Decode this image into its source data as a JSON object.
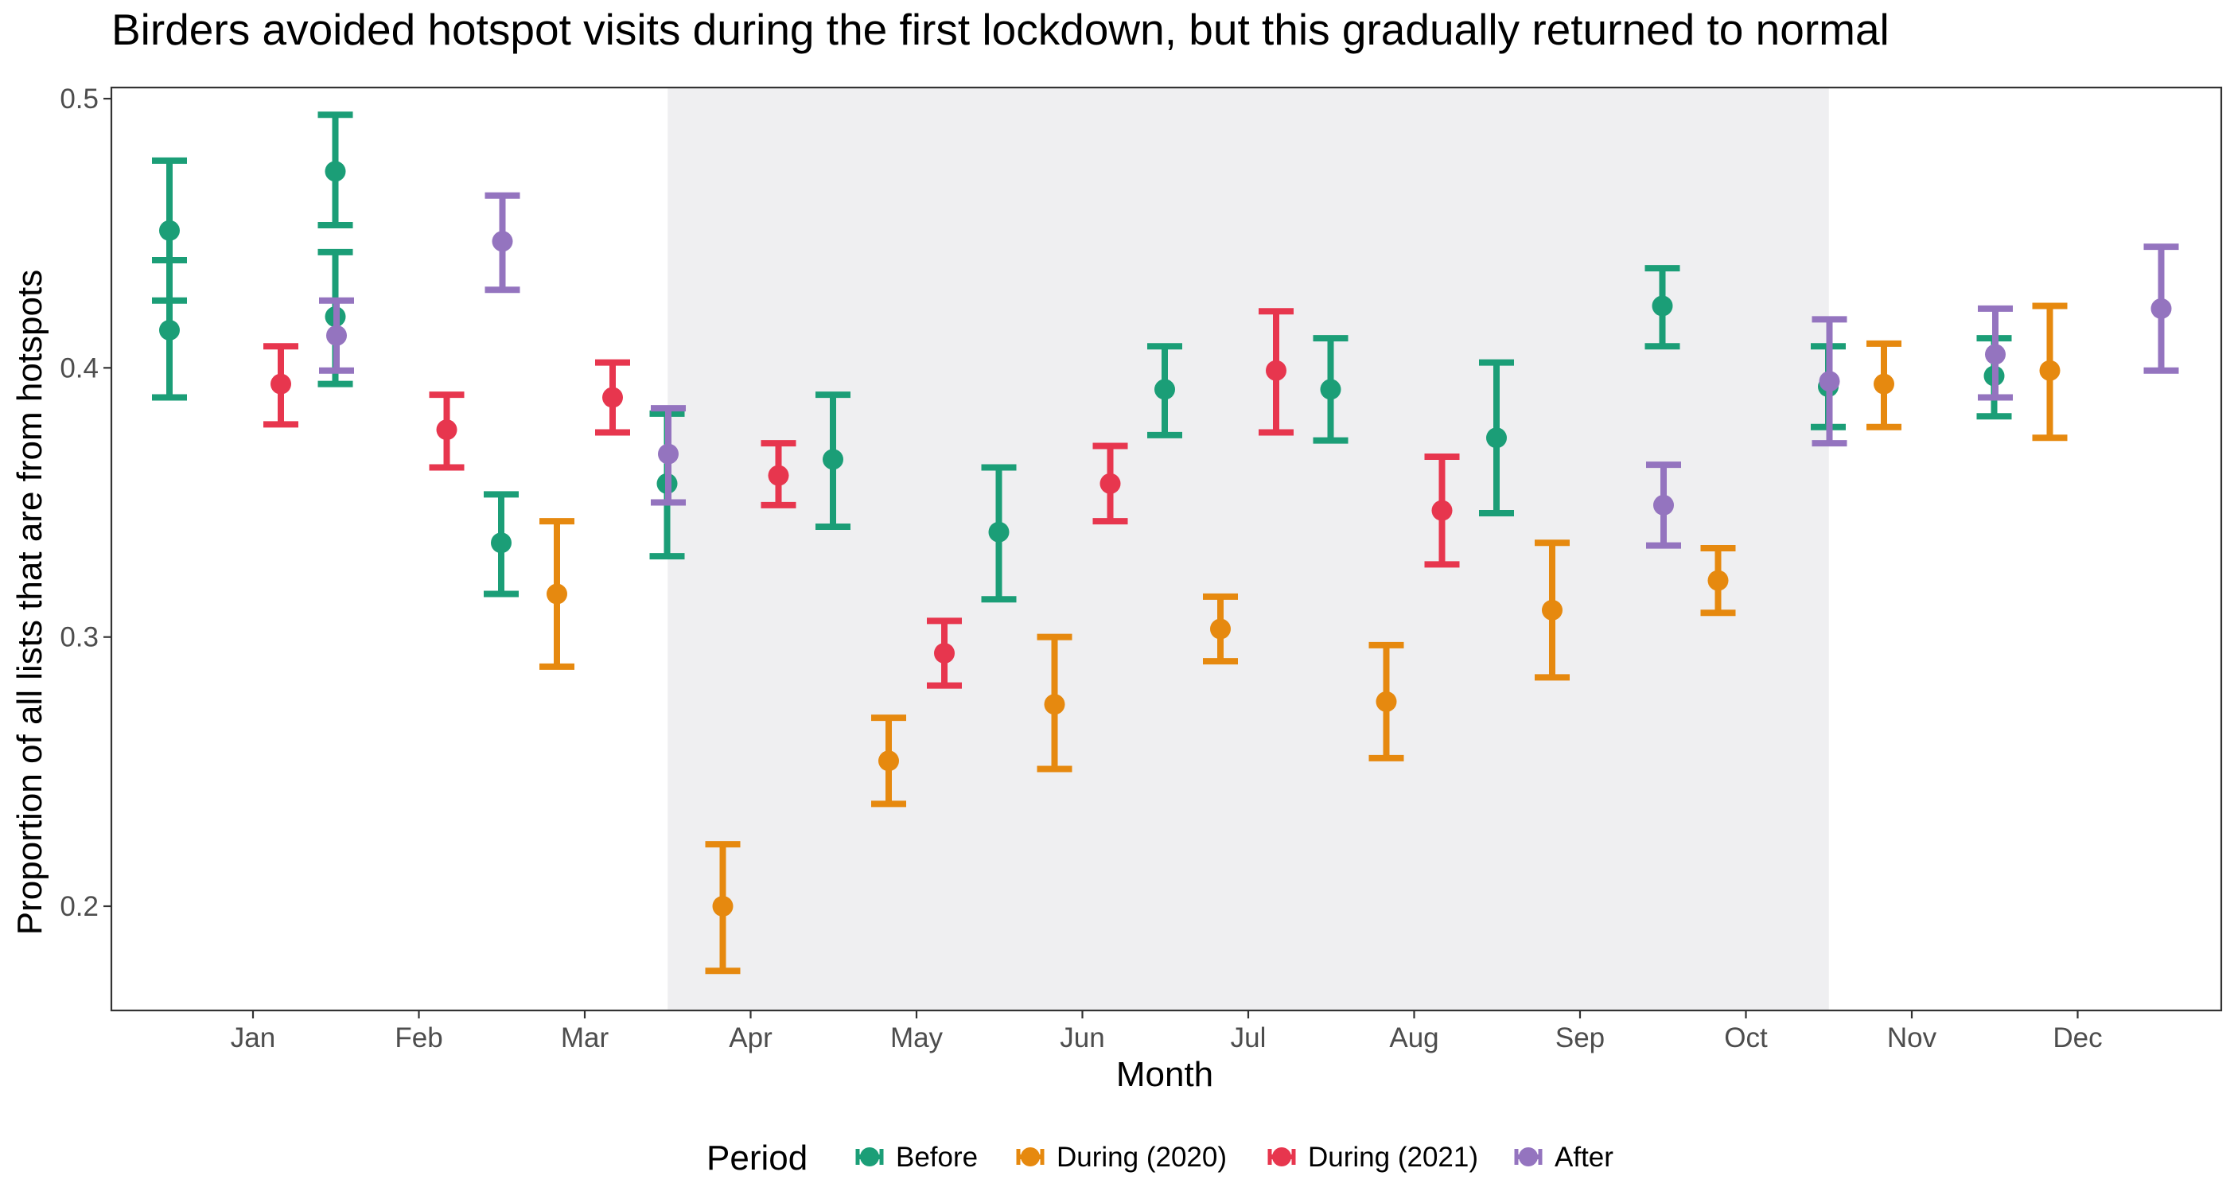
{
  "chart_data": {
    "type": "scatter",
    "title": "Birders avoided hotspot visits during the first lockdown, but this gradually returned to normal",
    "xlabel": "Month",
    "ylabel": "Proportion of all lists that are from hotspots",
    "categories": [
      "Jan",
      "Feb",
      "Mar",
      "Apr",
      "May",
      "Jun",
      "Jul",
      "Aug",
      "Sep",
      "Oct",
      "Nov",
      "Dec"
    ],
    "ylim": [
      0.16,
      0.51
    ],
    "yticks": [
      "0.2",
      "0.3",
      "0.4",
      "0.5"
    ],
    "shaded_region": {
      "from": "Apr",
      "to": "Oct"
    },
    "legend_title": "Period",
    "legend_position": "bottom",
    "series": [
      {
        "name": "Before",
        "color": "#1b9e77",
        "points": [
          {
            "month": "Jan",
            "y": 0.451,
            "lower": 0.425,
            "upper": 0.477
          },
          {
            "month": "Jan",
            "y": 0.414,
            "lower": 0.389,
            "upper": 0.44
          },
          {
            "month": "Feb",
            "y": 0.473,
            "lower": 0.453,
            "upper": 0.494
          },
          {
            "month": "Feb",
            "y": 0.419,
            "lower": 0.394,
            "upper": 0.443
          },
          {
            "month": "Mar",
            "y": 0.335,
            "lower": 0.316,
            "upper": 0.353
          },
          {
            "month": "Apr",
            "y": 0.357,
            "lower": 0.33,
            "upper": 0.383
          },
          {
            "month": "May",
            "y": 0.366,
            "lower": 0.341,
            "upper": 0.39
          },
          {
            "month": "Jun",
            "y": 0.339,
            "lower": 0.314,
            "upper": 0.363
          },
          {
            "month": "Jul",
            "y": 0.392,
            "lower": 0.375,
            "upper": 0.408
          },
          {
            "month": "Aug",
            "y": 0.392,
            "lower": 0.373,
            "upper": 0.411
          },
          {
            "month": "Sep",
            "y": 0.374,
            "lower": 0.346,
            "upper": 0.402
          },
          {
            "month": "Oct",
            "y": 0.423,
            "lower": 0.408,
            "upper": 0.437
          },
          {
            "month": "Nov",
            "y": 0.393,
            "lower": 0.378,
            "upper": 0.408
          },
          {
            "month": "Dec",
            "y": 0.397,
            "lower": 0.382,
            "upper": 0.411
          }
        ]
      },
      {
        "name": "During (2020)",
        "color": "#e6890f",
        "points": [
          {
            "month": "Mar",
            "y": 0.316,
            "lower": 0.289,
            "upper": 0.343
          },
          {
            "month": "Apr",
            "y": 0.2,
            "lower": 0.176,
            "upper": 0.223
          },
          {
            "month": "May",
            "y": 0.254,
            "lower": 0.238,
            "upper": 0.27
          },
          {
            "month": "Jun",
            "y": 0.275,
            "lower": 0.251,
            "upper": 0.3
          },
          {
            "month": "Jul",
            "y": 0.303,
            "lower": 0.291,
            "upper": 0.315
          },
          {
            "month": "Aug",
            "y": 0.276,
            "lower": 0.255,
            "upper": 0.297
          },
          {
            "month": "Sep",
            "y": 0.31,
            "lower": 0.285,
            "upper": 0.335
          },
          {
            "month": "Oct",
            "y": 0.321,
            "lower": 0.309,
            "upper": 0.333
          },
          {
            "month": "Nov",
            "y": 0.394,
            "lower": 0.378,
            "upper": 0.409
          },
          {
            "month": "Dec",
            "y": 0.399,
            "lower": 0.374,
            "upper": 0.423
          }
        ]
      },
      {
        "name": "During (2021)",
        "color": "#e7364e",
        "points": [
          {
            "month": "Jan",
            "y": 0.394,
            "lower": 0.379,
            "upper": 0.408
          },
          {
            "month": "Feb",
            "y": 0.377,
            "lower": 0.363,
            "upper": 0.39
          },
          {
            "month": "Mar",
            "y": 0.389,
            "lower": 0.376,
            "upper": 0.402
          },
          {
            "month": "Apr",
            "y": 0.36,
            "lower": 0.349,
            "upper": 0.372
          },
          {
            "month": "May",
            "y": 0.294,
            "lower": 0.282,
            "upper": 0.306
          },
          {
            "month": "Jun",
            "y": 0.357,
            "lower": 0.343,
            "upper": 0.371
          },
          {
            "month": "Jul",
            "y": 0.399,
            "lower": 0.376,
            "upper": 0.421
          },
          {
            "month": "Aug",
            "y": 0.347,
            "lower": 0.327,
            "upper": 0.367
          }
        ]
      },
      {
        "name": "After",
        "color": "#9474bf",
        "points": [
          {
            "month": "Jan",
            "y": 0.412,
            "lower": 0.399,
            "upper": 0.425
          },
          {
            "month": "Feb",
            "y": 0.447,
            "lower": 0.429,
            "upper": 0.464
          },
          {
            "month": "Mar",
            "y": 0.368,
            "lower": 0.35,
            "upper": 0.385
          },
          {
            "month": "Sep",
            "y": 0.349,
            "lower": 0.334,
            "upper": 0.364
          },
          {
            "month": "Oct",
            "y": 0.395,
            "lower": 0.372,
            "upper": 0.418
          },
          {
            "month": "Nov",
            "y": 0.405,
            "lower": 0.389,
            "upper": 0.422
          },
          {
            "month": "Dec",
            "y": 0.422,
            "lower": 0.399,
            "upper": 0.445
          }
        ]
      }
    ]
  }
}
